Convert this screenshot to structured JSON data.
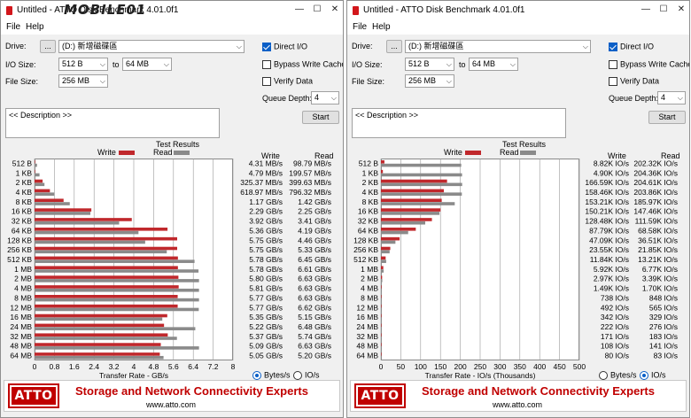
{
  "watermark": "MOBILE01",
  "colors": {
    "write": "#c0282c",
    "read": "#8a8a8a",
    "accent": "#0b5fc7",
    "atto_red": "#c00000"
  },
  "windows": [
    {
      "title": "Untitled - ATTO Disk Benchmark 4.01.0f1",
      "menu": [
        "File",
        "Help"
      ],
      "drive_label": "Drive:",
      "drive_browse": "...",
      "drive_value": "(D:) 新增磁碟區",
      "io_size_label": "I/O Size:",
      "io_from": "512 B",
      "io_to_label": "to",
      "io_to": "64 MB",
      "file_size_label": "File Size:",
      "file_size": "256 MB",
      "direct_io": "Direct I/O",
      "direct_io_checked": true,
      "bypass_write_cache": "Bypass Write Cache",
      "bypass_checked": false,
      "verify_data": "Verify Data",
      "verify_checked": false,
      "queue_depth_label": "Queue Depth:",
      "queue_depth": "4",
      "description": "<< Description >>",
      "start_label": "Start",
      "test_results": "Test Results",
      "legend_write": "Write",
      "legend_read": "Read",
      "col_write": "Write",
      "col_read": "Read",
      "radio_bytes": "Bytes/s",
      "radio_io": "IO/s",
      "selected_unit": "bytes",
      "banner_logo": "ATTO",
      "banner_slogan": "Storage and Network Connectivity Experts",
      "banner_url": "www.atto.com"
    },
    {
      "title": "Untitled - ATTO Disk Benchmark 4.01.0f1",
      "menu": [
        "File",
        "Help"
      ],
      "drive_label": "Drive:",
      "drive_browse": "...",
      "drive_value": "(D:) 新增磁碟區",
      "io_size_label": "I/O Size:",
      "io_from": "512 B",
      "io_to_label": "to",
      "io_to": "64 MB",
      "file_size_label": "File Size:",
      "file_size": "256 MB",
      "direct_io": "Direct I/O",
      "direct_io_checked": true,
      "bypass_write_cache": "Bypass Write Cache",
      "bypass_checked": false,
      "verify_data": "Verify Data",
      "verify_checked": false,
      "queue_depth_label": "Queue Depth:",
      "queue_depth": "4",
      "description": "<< Description >>",
      "start_label": "Start",
      "test_results": "Test Results",
      "legend_write": "Write",
      "legend_read": "Read",
      "col_write": "Write",
      "col_read": "Read",
      "radio_bytes": "Bytes/s",
      "radio_io": "IO/s",
      "selected_unit": "io",
      "banner_logo": "ATTO",
      "banner_slogan": "Storage and Network Connectivity Experts",
      "banner_url": "www.atto.com"
    }
  ],
  "chart_data": [
    {
      "type": "bar",
      "xlabel": "Transfer Rate - GB/s",
      "xlim": [
        0,
        8
      ],
      "xticks": [
        "0",
        "0.8",
        "1.6",
        "2.4",
        "3.2",
        "4",
        "4.8",
        "5.6",
        "6.4",
        "7.2",
        "8"
      ],
      "categories": [
        "512 B",
        "1 KB",
        "2 KB",
        "4 KB",
        "8 KB",
        "16 KB",
        "32 KB",
        "64 KB",
        "128 KB",
        "256 KB",
        "512 KB",
        "1 MB",
        "2 MB",
        "4 MB",
        "8 MB",
        "12 MB",
        "16 MB",
        "24 MB",
        "32 MB",
        "48 MB",
        "64 MB"
      ],
      "series": [
        {
          "name": "Write",
          "values": [
            0.004,
            0.005,
            0.325,
            0.619,
            1.17,
            2.29,
            3.92,
            5.36,
            5.75,
            5.75,
            5.78,
            5.78,
            5.8,
            5.81,
            5.77,
            5.77,
            5.35,
            5.22,
            5.37,
            5.09,
            5.05
          ]
        },
        {
          "name": "Read",
          "values": [
            0.099,
            0.2,
            0.4,
            0.8,
            1.42,
            2.25,
            3.41,
            4.19,
            4.46,
            5.33,
            6.45,
            6.61,
            6.63,
            6.63,
            6.63,
            6.62,
            5.15,
            6.48,
            5.74,
            6.63,
            5.2
          ]
        }
      ],
      "write_labels": [
        "4.31 MB/s",
        "4.79 MB/s",
        "325.37 MB/s",
        "618.97 MB/s",
        "1.17 GB/s",
        "2.29 GB/s",
        "3.92 GB/s",
        "5.36 GB/s",
        "5.75 GB/s",
        "5.75 GB/s",
        "5.78 GB/s",
        "5.78 GB/s",
        "5.80 GB/s",
        "5.81 GB/s",
        "5.77 GB/s",
        "5.77 GB/s",
        "5.35 GB/s",
        "5.22 GB/s",
        "5.37 GB/s",
        "5.09 GB/s",
        "5.05 GB/s"
      ],
      "read_labels": [
        "98.79 MB/s",
        "199.57 MB/s",
        "399.63 MB/s",
        "796.32 MB/s",
        "1.42 GB/s",
        "2.25 GB/s",
        "3.41 GB/s",
        "4.19 GB/s",
        "4.46 GB/s",
        "5.33 GB/s",
        "6.45 GB/s",
        "6.61 GB/s",
        "6.63 GB/s",
        "6.63 GB/s",
        "6.63 GB/s",
        "6.62 GB/s",
        "5.15 GB/s",
        "6.48 GB/s",
        "5.74 GB/s",
        "6.63 GB/s",
        "5.20 GB/s"
      ]
    },
    {
      "type": "bar",
      "xlabel": "Transfer Rate - IO/s (Thousands)",
      "xlim": [
        0,
        500
      ],
      "xticks": [
        "0",
        "50",
        "100",
        "150",
        "200",
        "250",
        "300",
        "350",
        "400",
        "450",
        "500"
      ],
      "categories": [
        "512 B",
        "1 KB",
        "2 KB",
        "4 KB",
        "8 KB",
        "16 KB",
        "32 KB",
        "64 KB",
        "128 KB",
        "256 KB",
        "512 KB",
        "1 MB",
        "2 MB",
        "4 MB",
        "8 MB",
        "12 MB",
        "16 MB",
        "24 MB",
        "32 MB",
        "48 MB",
        "64 MB"
      ],
      "series": [
        {
          "name": "Write",
          "values": [
            8.82,
            4.9,
            166.59,
            158.46,
            153.21,
            150.21,
            128.48,
            87.79,
            47.09,
            23.55,
            11.84,
            5.92,
            2.97,
            1.49,
            0.738,
            0.492,
            0.342,
            0.222,
            0.171,
            0.108,
            0.08
          ]
        },
        {
          "name": "Read",
          "values": [
            202.32,
            204.36,
            204.61,
            203.86,
            185.97,
            147.46,
            111.59,
            68.58,
            36.51,
            21.85,
            13.21,
            6.77,
            3.39,
            1.7,
            0.848,
            0.565,
            0.329,
            0.276,
            0.183,
            0.141,
            0.083
          ]
        }
      ],
      "write_labels": [
        "8.82K IO/s",
        "4.90K IO/s",
        "166.59K IO/s",
        "158.46K IO/s",
        "153.21K IO/s",
        "150.21K IO/s",
        "128.48K IO/s",
        "87.79K IO/s",
        "47.09K IO/s",
        "23.55K IO/s",
        "11.84K IO/s",
        "5.92K IO/s",
        "2.97K IO/s",
        "1.49K IO/s",
        "738 IO/s",
        "492 IO/s",
        "342 IO/s",
        "222 IO/s",
        "171 IO/s",
        "108 IO/s",
        "80 IO/s"
      ],
      "read_labels": [
        "202.32K IO/s",
        "204.36K IO/s",
        "204.61K IO/s",
        "203.86K IO/s",
        "185.97K IO/s",
        "147.46K IO/s",
        "111.59K IO/s",
        "68.58K IO/s",
        "36.51K IO/s",
        "21.85K IO/s",
        "13.21K IO/s",
        "6.77K IO/s",
        "3.39K IO/s",
        "1.70K IO/s",
        "848 IO/s",
        "565 IO/s",
        "329 IO/s",
        "276 IO/s",
        "183 IO/s",
        "141 IO/s",
        "83 IO/s"
      ]
    }
  ]
}
